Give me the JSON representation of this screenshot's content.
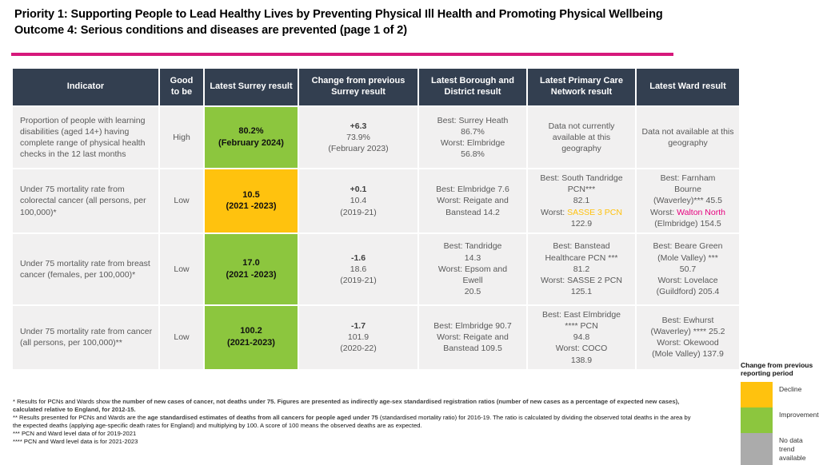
{
  "title": {
    "line1": "Priority 1: Supporting People to Lead Healthy Lives by Preventing Physical Ill Health and Promoting Physical Wellbeing",
    "line2": "Outcome 4: Serious conditions and diseases are prevented (page 1 of 2)"
  },
  "colors": {
    "divider_pink": "#d6187b",
    "header_navy": "#333f50",
    "cell_gray": "#f1f0f0",
    "improvement_green": "#8cc63e",
    "decline_yellow": "#ffc20e",
    "no_data_gray": "#ababab",
    "pcn_highlight_yellow": "#ffc20e",
    "ward_highlight_magenta": "#e6007e"
  },
  "table": {
    "headers": [
      "Indicator",
      "Good to be",
      "Latest Surrey result",
      "Change from previous Surrey result",
      "Latest Borough and District result",
      "Latest Primary Care Network result",
      "Latest Ward result"
    ],
    "rows": [
      {
        "indicator": "Proportion of people with learning disabilities (aged 14+) having complete range of physical health checks in the 12 last months",
        "good_to_be": "High",
        "surrey_result": "80.2%\n(February 2024)",
        "surrey_bg": "#8cc63e",
        "change_segments": [
          {
            "t": "+6.3\n",
            "b": true
          },
          {
            "t": "73.9%\n(February 2023)"
          }
        ],
        "borough": "Best: Surrey Heath\n86.7%\nWorst: Elmbridge\n56.8%",
        "pcn_segments": [
          {
            "t": "Data not currently available at this geography"
          }
        ],
        "ward_segments": [
          {
            "t": "Data not available at this geography"
          }
        ]
      },
      {
        "indicator": "Under 75 mortality rate from colorectal cancer (all persons, per 100,000)*",
        "good_to_be": "Low",
        "surrey_result": "10.5\n(2021 -2023)",
        "surrey_bg": "#ffc20e",
        "change_segments": [
          {
            "t": "+0.1\n",
            "b": true
          },
          {
            "t": "10.4\n(2019-21)"
          }
        ],
        "borough": "Best: Elmbridge 7.6\nWorst: Reigate and\nBanstead 14.2",
        "pcn_segments": [
          {
            "t": "Best: South Tandridge\nPCN***\n82.1\nWorst: "
          },
          {
            "t": "SASSE 3 PCN",
            "c": "#ffc20e"
          },
          {
            "t": "\n122.9"
          }
        ],
        "ward_segments": [
          {
            "t": "Best: Farnham\nBourne\n(Waverley)*** 45.5\nWorst: "
          },
          {
            "t": "Walton North",
            "c": "#e6007e"
          },
          {
            "t": "\n(Elmbridge) 154.5"
          }
        ]
      },
      {
        "indicator": "Under 75 mortality rate from breast cancer (females, per 100,000)*",
        "good_to_be": "Low",
        "surrey_result": "17.0\n(2021 -2023)",
        "surrey_bg": "#8cc63e",
        "change_segments": [
          {
            "t": "-1.6\n",
            "b": true
          },
          {
            "t": "18.6\n(2019-21)"
          }
        ],
        "borough": "Best: Tandridge\n14.3\nWorst: Epsom and\nEwell\n20.5",
        "pcn_segments": [
          {
            "t": "Best: Banstead\nHealthcare PCN ***\n81.2\nWorst: SASSE 2 PCN\n125.1"
          }
        ],
        "ward_segments": [
          {
            "t": "Best: Beare Green\n(Mole Valley) ***\n50.7\nWorst: Lovelace\n(Guildford) 205.4"
          }
        ]
      },
      {
        "indicator": "Under 75 mortality rate from cancer (all persons, per 100,000)**",
        "good_to_be": "Low",
        "surrey_result": "100.2\n(2021-2023)",
        "surrey_bg": "#8cc63e",
        "change_segments": [
          {
            "t": "-1.7\n",
            "b": true
          },
          {
            "t": "101.9\n(2020-22)"
          }
        ],
        "borough": "Best: Elmbridge 90.7\nWorst: Reigate and\nBanstead 109.5",
        "pcn_segments": [
          {
            "t": "Best: East Elmbridge\n**** PCN\n94.8\nWorst: COCO\n138.9"
          }
        ],
        "ward_segments": [
          {
            "t": "Best: Ewhurst\n(Waverley) **** 25.2\nWorst: Okewood\n(Mole Valley) 137.9"
          }
        ]
      }
    ]
  },
  "legend": {
    "title": "Change from previous reporting period",
    "items": [
      {
        "label": "Decline",
        "color": "#ffc20e"
      },
      {
        "label": "Improvement",
        "color": "#8cc63e"
      },
      {
        "label": "No data trend available",
        "color": "#ababab"
      }
    ]
  },
  "footnotes": {
    "note1_segments": [
      {
        "t": "* Results for PCNs and Wards show "
      },
      {
        "t": "the number of new cases of cancer, not deaths under 75. Figures are presented as indirectly age-sex standardised registration ratios (number of new cases as a percentage of expected new cases), calculated relative to England, for 2012-15.",
        "b": true
      }
    ],
    "note2_segments": [
      {
        "t": "** Results presented for PCNs and Wards are the "
      },
      {
        "t": "age standardised estimates of deaths from all cancers for people aged under 75 ",
        "b": true
      },
      {
        "t": "(standardised mortality ratio) for 2016-19. The ratio is calculated by dividing the observed total deaths in the area by the expected deaths (applying age-specific death rates for England) and multiplying by 100. A score of 100 means the observed deaths are as expected."
      }
    ],
    "note3": "*** PCN and Ward level data of for 2019-2021",
    "note4": "**** PCN and Ward level data is for 2021-2023"
  }
}
